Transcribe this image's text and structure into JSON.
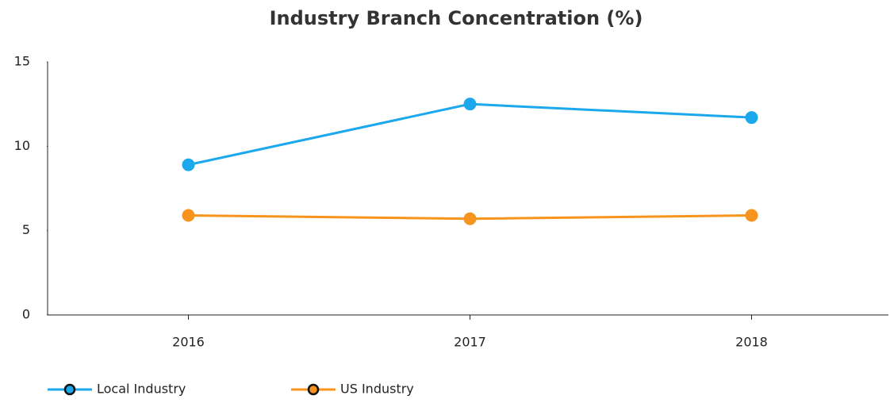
{
  "chart_data": {
    "type": "line",
    "title": "Industry Branch Concentration (%)",
    "categories": [
      "2016",
      "2017",
      "2018"
    ],
    "series": [
      {
        "name": "Local Industry",
        "color": "#1ba8ec",
        "values": [
          8.9,
          12.5,
          11.7
        ]
      },
      {
        "name": "US Industry",
        "color": "#f7941d",
        "values": [
          5.9,
          5.7,
          5.9
        ]
      }
    ],
    "ylim": [
      0,
      15
    ],
    "yticks": [
      0,
      5,
      10,
      15
    ],
    "grid": false,
    "legend": "bottom-left"
  }
}
